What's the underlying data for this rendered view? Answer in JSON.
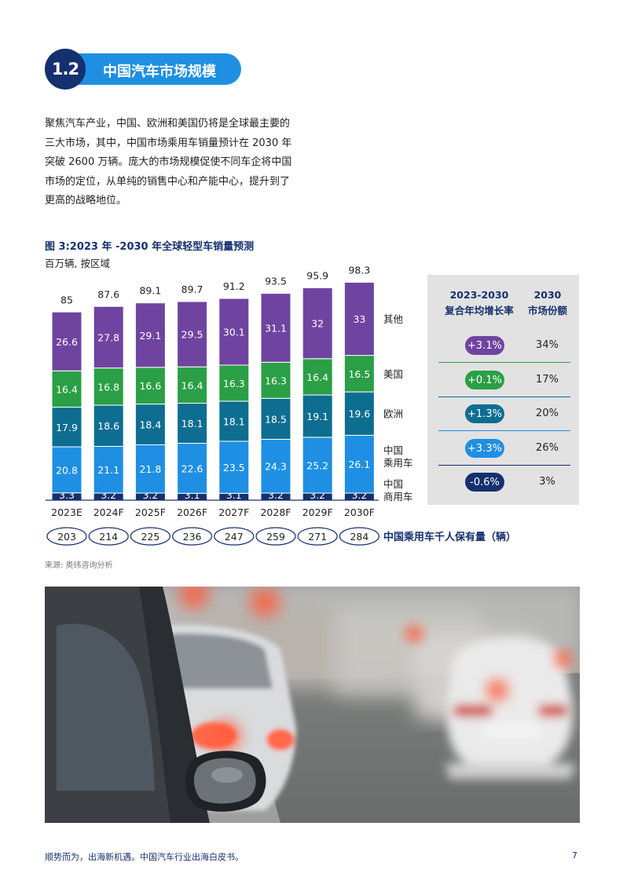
{
  "section": {
    "number": "1.2",
    "title": "中国汽车市场规模"
  },
  "intro_lines": [
    "聚焦汽车产业，中国、欧洲和美国仍将是全球最主要的",
    "三大市场，其中，中国市场乘用车销量预计在 2030 年",
    "突破 2600 万辆。庞大的市场规模促使不同车企将中国",
    "市场的定位，从单纯的销售中心和产能中心，提升到了",
    "更高的战略地位。"
  ],
  "figure": {
    "title": "图 3:2023 年 -2030 年全球轻型车销量预测",
    "subtitle": "百万辆, 按区域"
  },
  "chart_data": {
    "type": "bar",
    "stacked": true,
    "categories": [
      "2023E",
      "2024F",
      "2025F",
      "2026F",
      "2027F",
      "2028F",
      "2029F",
      "2030F"
    ],
    "series": [
      {
        "name": "中国商用车",
        "label_lines": [
          "中国",
          "商用车"
        ],
        "color": "#15306e",
        "values": [
          3.3,
          3.2,
          3.2,
          3.1,
          3.1,
          3.2,
          3.2,
          3.2
        ],
        "labels": [
          "3.3",
          "3.2",
          "3.2",
          "3.1",
          "3.1",
          "3.2",
          "3.2",
          "3.2"
        ]
      },
      {
        "name": "中国乘用车",
        "label_lines": [
          "中国",
          "乘用车"
        ],
        "color": "#1e8fe3",
        "values": [
          20.8,
          21.1,
          21.8,
          22.6,
          23.5,
          24.3,
          25.2,
          26.1
        ],
        "labels": [
          "20.8",
          "21.1",
          "21.8",
          "22.6",
          "23.5",
          "24.3",
          "25.2",
          "26.1"
        ]
      },
      {
        "name": "欧洲",
        "label_lines": [
          "欧洲"
        ],
        "color": "#0d6e91",
        "values": [
          17.9,
          18.6,
          18.4,
          18.1,
          18.1,
          18.5,
          19.1,
          19.6
        ],
        "labels": [
          "17.9",
          "18.6",
          "18.4",
          "18.1",
          "18.1",
          "18.5",
          "19.1",
          "19.6"
        ]
      },
      {
        "name": "美国",
        "label_lines": [
          "美国"
        ],
        "color": "#2b9f45",
        "values": [
          16.4,
          16.8,
          16.6,
          16.4,
          16.3,
          16.3,
          16.4,
          16.5
        ],
        "labels": [
          "16.4",
          "16.8",
          "16.6",
          "16.4",
          "16.3",
          "16.3",
          "16.4",
          "16.5"
        ]
      },
      {
        "name": "其他",
        "label_lines": [
          "其他"
        ],
        "color": "#6f44a0",
        "values": [
          26.6,
          27.8,
          29.1,
          29.5,
          30.1,
          31.1,
          32,
          33
        ],
        "labels": [
          "26.6",
          "27.8",
          "29.1",
          "29.5",
          "30.1",
          "31.1",
          "32",
          "33"
        ]
      }
    ],
    "totals": [
      85,
      87.6,
      89.1,
      89.7,
      91.2,
      93.5,
      95.9,
      98.3
    ],
    "total_labels": [
      "85",
      "87.6",
      "89.1",
      "89.7",
      "91.2",
      "93.5",
      "95.9",
      "98.3"
    ],
    "ownership": {
      "title": "中国乘用车千人保有量（辆）",
      "values": [
        203,
        214,
        225,
        236,
        247,
        259,
        271,
        284
      ],
      "labels": [
        "203",
        "214",
        "225",
        "236",
        "247",
        "259",
        "271",
        "284"
      ]
    },
    "ylim": [
      0,
      100
    ]
  },
  "growth_table": {
    "header_cagr": [
      "2023-2030",
      "复合年均增长率"
    ],
    "header_share": [
      "2030",
      "市场份额"
    ],
    "rows": [
      {
        "region": "其他",
        "cagr": "+3.1%",
        "share": "34%",
        "color": "#6f44a0"
      },
      {
        "region": "美国",
        "cagr": "+0.1%",
        "share": "17%",
        "color": "#2b9f45"
      },
      {
        "region": "欧洲",
        "cagr": "+1.3%",
        "share": "20%",
        "color": "#0d6e91"
      },
      {
        "region": "中国乘用车",
        "cagr": "+3.3%",
        "share": "26%",
        "color": "#1e8fe3"
      },
      {
        "region": "中国商用车",
        "cagr": "-0.6%",
        "share": "3%",
        "color": "#15306e"
      }
    ]
  },
  "source": "来源: 奥纬咨询分析",
  "photo": {
    "description_icon": "traffic-photo"
  },
  "footer": {
    "text": "顺势而为，出海新机遇。中国汽车行业出海白皮书。",
    "page": "7"
  }
}
